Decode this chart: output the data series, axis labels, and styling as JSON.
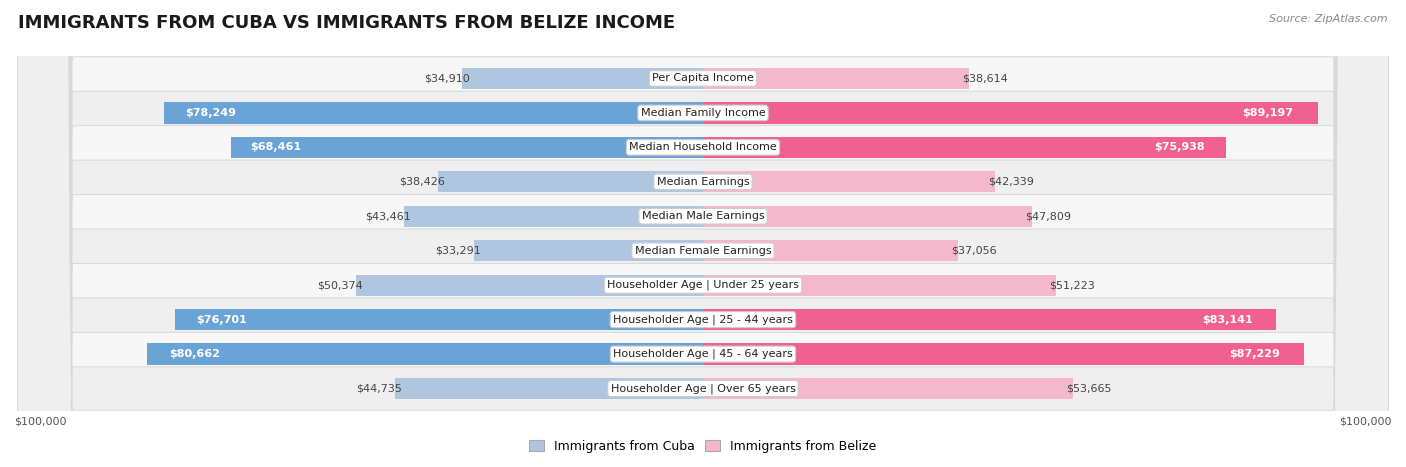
{
  "title": "IMMIGRANTS FROM CUBA VS IMMIGRANTS FROM BELIZE INCOME",
  "source": "Source: ZipAtlas.com",
  "categories": [
    "Per Capita Income",
    "Median Family Income",
    "Median Household Income",
    "Median Earnings",
    "Median Male Earnings",
    "Median Female Earnings",
    "Householder Age | Under 25 years",
    "Householder Age | 25 - 44 years",
    "Householder Age | 45 - 64 years",
    "Householder Age | Over 65 years"
  ],
  "cuba_values": [
    34910,
    78249,
    68461,
    38426,
    43461,
    33291,
    50374,
    76701,
    80662,
    44735
  ],
  "belize_values": [
    38614,
    89197,
    75938,
    42339,
    47809,
    37056,
    51223,
    83141,
    87229,
    53665
  ],
  "cuba_labels": [
    "$34,910",
    "$78,249",
    "$68,461",
    "$38,426",
    "$43,461",
    "$33,291",
    "$50,374",
    "$76,701",
    "$80,662",
    "$44,735"
  ],
  "belize_labels": [
    "$38,614",
    "$89,197",
    "$75,938",
    "$42,339",
    "$47,809",
    "$37,056",
    "$51,223",
    "$83,141",
    "$87,229",
    "$53,665"
  ],
  "cuba_color_light": "#aec6e0",
  "cuba_color_strong": "#6aa3d5",
  "belize_color_light": "#f4b8cc",
  "belize_color_strong": "#f06090",
  "cuba_threshold": 55000,
  "belize_threshold": 55000,
  "max_value": 100000,
  "row_colors": [
    "#f7f7f7",
    "#efefef"
  ],
  "row_border_color": "#d8d8d8",
  "xlabel_left": "$100,000",
  "xlabel_right": "$100,000",
  "legend_cuba": "Immigrants from Cuba",
  "legend_belize": "Immigrants from Belize",
  "title_fontsize": 13,
  "label_fontsize": 8,
  "category_fontsize": 8,
  "source_fontsize": 8
}
